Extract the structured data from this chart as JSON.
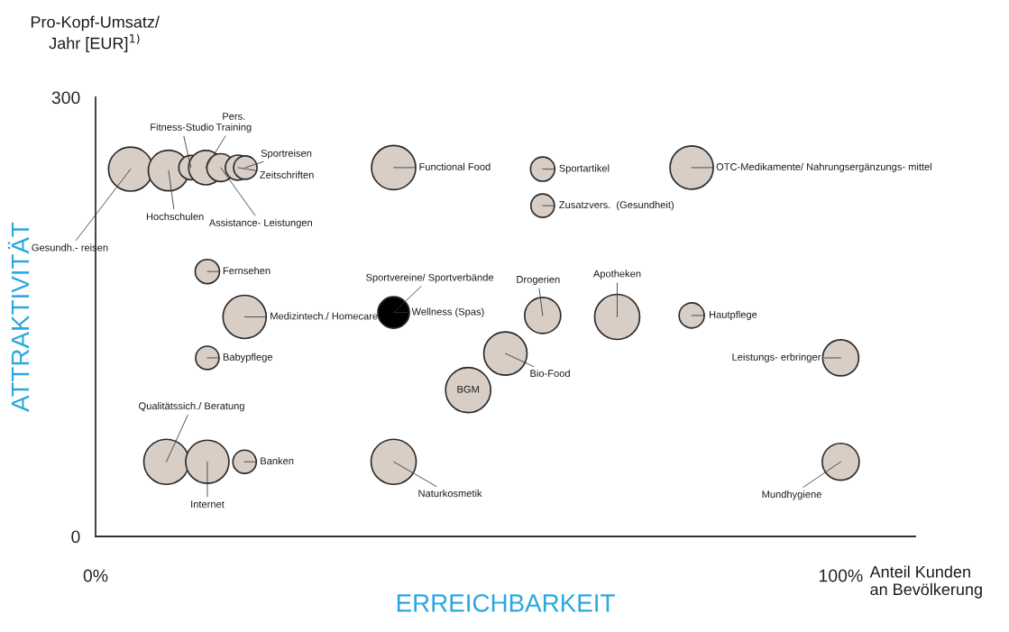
{
  "chart_data": {
    "type": "bubble",
    "xlabel": "ERREICHBARKEIT",
    "ylabel": "ATTRAKTIVITÄT",
    "x": [
      4.7,
      9.8,
      12.8,
      14.8,
      16.8,
      19.1,
      20.1,
      15,
      20,
      15,
      9.5,
      15,
      20,
      40,
      60,
      60,
      80,
      40,
      60,
      70,
      80,
      55,
      50,
      100,
      40,
      100
    ],
    "values": [
      251,
      250,
      252,
      252,
      252,
      252,
      252,
      181,
      150,
      122,
      51,
      51,
      51,
      252,
      251,
      226,
      252,
      153,
      151,
      150,
      151,
      125,
      100,
      122,
      51,
      51
    ],
    "sizes": [
      0.96,
      0.81,
      0.29,
      0.58,
      0.38,
      0.31,
      0.27,
      0.29,
      0.92,
      0.27,
      1,
      0.92,
      0.27,
      0.96,
      0.29,
      0.27,
      0.92,
      0.49,
      0.64,
      1,
      0.31,
      0.92,
      1,
      0.64,
      1,
      0.67
    ],
    "colors": [
      "#d8cec6",
      "#d8cec6",
      "#d8cec6",
      "#d8cec6",
      "#d8cec6",
      "#d8cec6",
      "#d8cec6",
      "#d8cec6",
      "#d8cec6",
      "#d8cec6",
      "#d8cec6",
      "#d8cec6",
      "#d8cec6",
      "#d8cec6",
      "#d8cec6",
      "#d8cec6",
      "#d8cec6",
      "#000000",
      "#d8cec6",
      "#d8cec6",
      "#d8cec6",
      "#d8cec6",
      "#d8cec6",
      "#d8cec6",
      "#d8cec6",
      "#d8cec6"
    ],
    "xlim": [
      0,
      110
    ],
    "ylim": [
      0,
      300
    ],
    "xticks": [
      {
        "value": 0,
        "label": "0%"
      },
      {
        "value": 100,
        "label": "100%"
      }
    ],
    "yticks": [
      0,
      300
    ],
    "annotations": [
      {
        "text": "Gesundh.- reisen",
        "x": 4.7,
        "y": 251
      },
      {
        "text": "Hochschulen",
        "x": 9.8,
        "y": 250
      },
      {
        "text": "Fitness-Studio",
        "x": 12.8,
        "y": 252
      },
      {
        "text": "Pers.\nTraining",
        "x": 14.8,
        "y": 252
      },
      {
        "text": "Assistance- Leistungen",
        "x": 16.8,
        "y": 252
      },
      {
        "text": "Zeitschriften",
        "x": 19.1,
        "y": 252
      },
      {
        "text": "Sportreisen",
        "x": 20.1,
        "y": 252
      },
      {
        "text": "Fernsehen",
        "x": 15,
        "y": 181
      },
      {
        "text": "Medizintech./ Homecare",
        "x": 20,
        "y": 150
      },
      {
        "text": "Babypflege",
        "x": 15,
        "y": 122
      },
      {
        "text": "Qualitätssich./ Beratung",
        "x": 9.5,
        "y": 51
      },
      {
        "text": "Internet",
        "x": 15,
        "y": 51
      },
      {
        "text": "Banken",
        "x": 20,
        "y": 51
      },
      {
        "text": "Functional Food",
        "x": 40,
        "y": 252
      },
      {
        "text": "Sportartikel",
        "x": 60,
        "y": 251
      },
      {
        "text": "Zusatzvers.  (Gesundheit)",
        "x": 60,
        "y": 226
      },
      {
        "text": "OTC-Medikamente/ Nahrungsergänzungs- mittel",
        "x": 80,
        "y": 252
      },
      {
        "text": "Sportvereine/ Sportverbände",
        "x": 40,
        "y": 153
      },
      {
        "text": "Drogerien",
        "x": 60,
        "y": 151
      },
      {
        "text": "Apotheken",
        "x": 70,
        "y": 150
      },
      {
        "text": "Hautpflege",
        "x": 80,
        "y": 151
      },
      {
        "text": "Bio-Food",
        "x": 55,
        "y": 125
      },
      {
        "text": "BGM",
        "x": 50,
        "y": 100
      },
      {
        "text": "Leistungs- erbringer",
        "x": 100,
        "y": 122
      },
      {
        "text": "Naturkosmetik",
        "x": 40,
        "y": 51
      },
      {
        "text": "Mundhygiene",
        "x": 100,
        "y": 51
      },
      {
        "text": "Wellness (Spas)",
        "x": 40,
        "y": 153
      },
      "Pro-Kopf-Umsatz/\nJahr [EUR]$^{1)}$",
      "Anteil Kunden\nan Bevölkerung"
    ]
  }
}
